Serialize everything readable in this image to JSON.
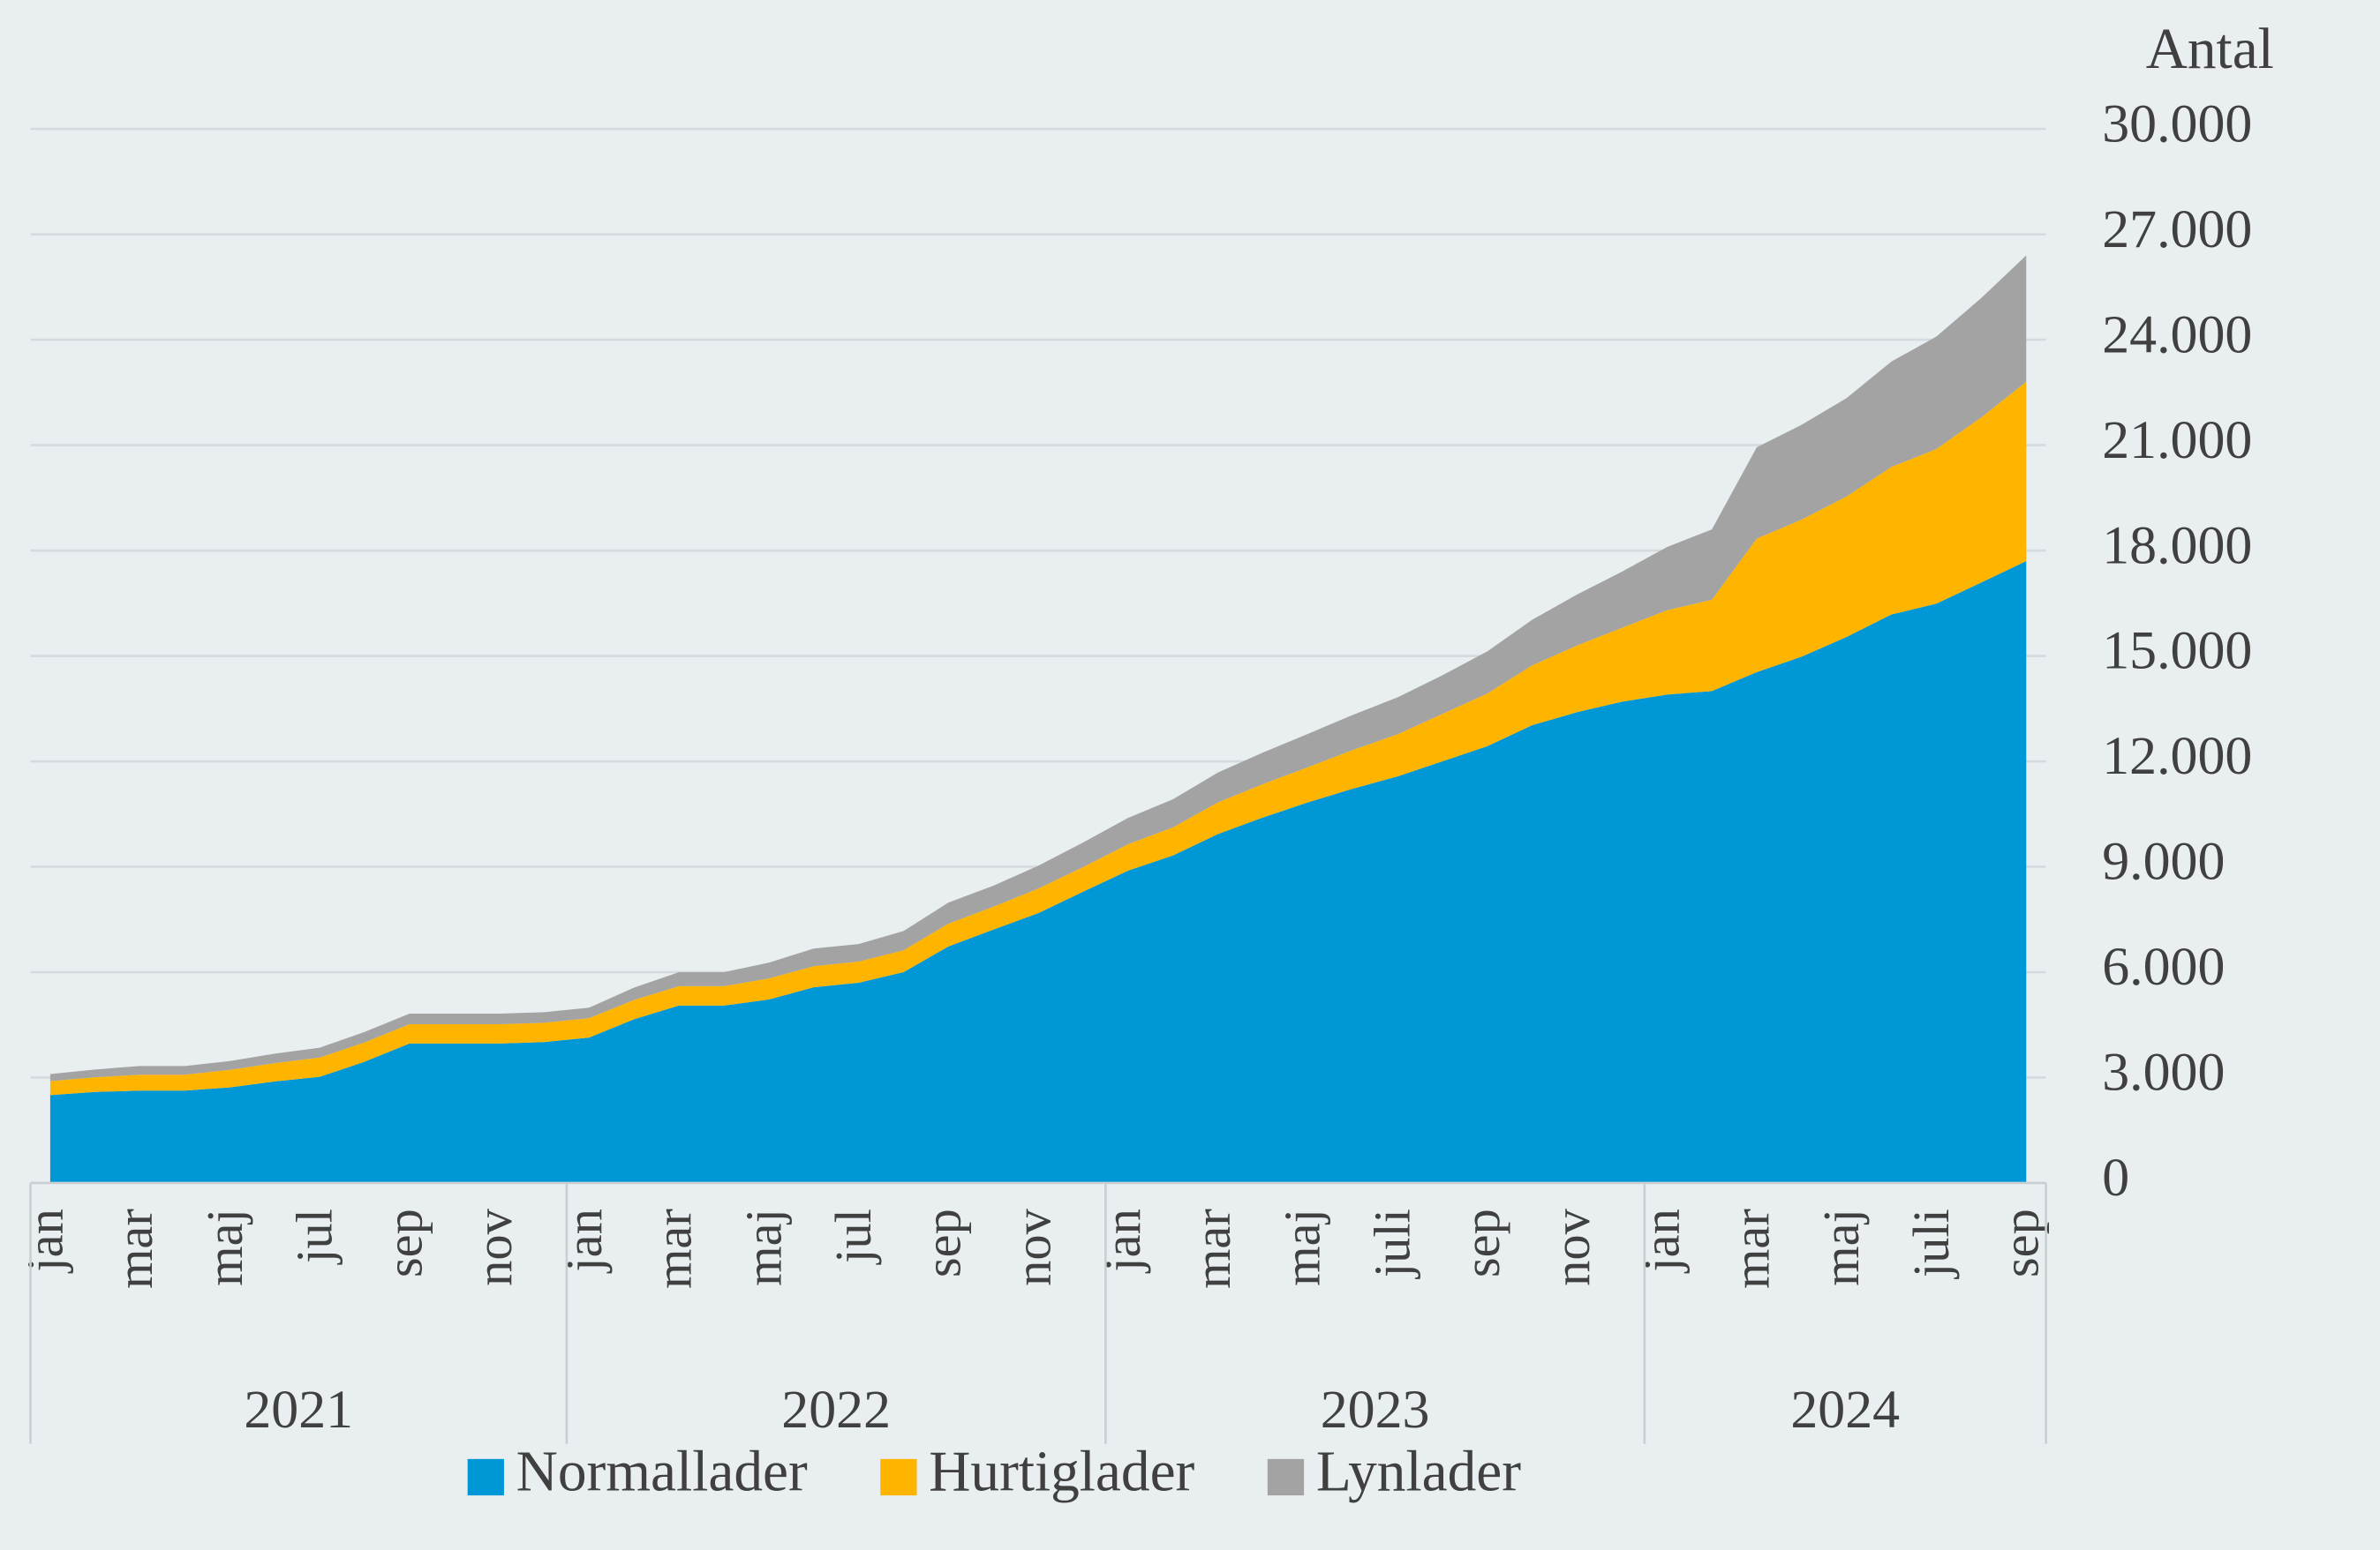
{
  "chart_data": {
    "type": "stacked-area",
    "y_label": "Antal",
    "categories": [
      "jan",
      null,
      "mar",
      null,
      "maj",
      null,
      "jul",
      null,
      "sep",
      null,
      "nov",
      null,
      "jan",
      null,
      "mar",
      null,
      "maj",
      null,
      "jul",
      null,
      "sep",
      null,
      "nov",
      null,
      "jan",
      null,
      "mar",
      null,
      "maj",
      null,
      "juli",
      null,
      "sep",
      null,
      "nov",
      null,
      "jan",
      null,
      "mar",
      null,
      "maj",
      null,
      "juli",
      null,
      "sep"
    ],
    "groups": [
      "2021",
      "2022",
      "2023",
      "2024"
    ],
    "series": [
      {
        "name": "Normallader",
        "color": "#0097d7",
        "values": [
          2500,
          2590,
          2630,
          2630,
          2720,
          2890,
          3020,
          3450,
          3970,
          3970,
          3970,
          4010,
          4140,
          4660,
          5050,
          5050,
          5220,
          5570,
          5700,
          6000,
          6730,
          7210,
          7680,
          8290,
          8890,
          9320,
          9930,
          10400,
          10830,
          11220,
          11570,
          12000,
          12430,
          13030,
          13400,
          13700,
          13900,
          14000,
          14540,
          14980,
          15540,
          16180,
          16490,
          17090,
          17700
        ]
      },
      {
        "name": "Hurtiglader",
        "color": "#ffb500",
        "values": [
          400,
          420,
          450,
          450,
          500,
          520,
          550,
          550,
          550,
          550,
          550,
          550,
          550,
          550,
          550,
          550,
          600,
          600,
          600,
          620,
          650,
          650,
          700,
          700,
          750,
          800,
          900,
          950,
          1000,
          1100,
          1200,
          1350,
          1500,
          1700,
          1900,
          2100,
          2400,
          2600,
          3800,
          3900,
          4000,
          4200,
          4400,
          4700,
          5100
        ]
      },
      {
        "name": "Lynlader",
        "color": "#a3a3a3",
        "values": [
          200,
          220,
          250,
          250,
          250,
          270,
          280,
          300,
          300,
          300,
          300,
          300,
          300,
          350,
          400,
          400,
          450,
          500,
          500,
          550,
          600,
          600,
          650,
          700,
          750,
          800,
          850,
          900,
          950,
          1000,
          1050,
          1100,
          1200,
          1300,
          1450,
          1600,
          1800,
          2000,
          2600,
          2700,
          2800,
          3000,
          3200,
          3400,
          3600
        ]
      }
    ],
    "ylim": [
      0,
      30000
    ],
    "yticks": [
      0,
      {
        "value": 3000,
        "label": "3.000"
      },
      {
        "value": 6000,
        "label": "6.000"
      },
      {
        "value": 9000,
        "label": "9.000"
      },
      {
        "value": 12000,
        "label": "12.000"
      },
      {
        "value": 15000,
        "label": "15.000"
      },
      {
        "value": 18000,
        "label": "18.000"
      },
      {
        "value": 21000,
        "label": "21.000"
      },
      {
        "value": 24000,
        "label": "24.000"
      },
      {
        "value": 27000,
        "label": "27.000"
      },
      {
        "value": 30000,
        "label": "30.000"
      }
    ],
    "grid": true,
    "legend": "bottom"
  }
}
